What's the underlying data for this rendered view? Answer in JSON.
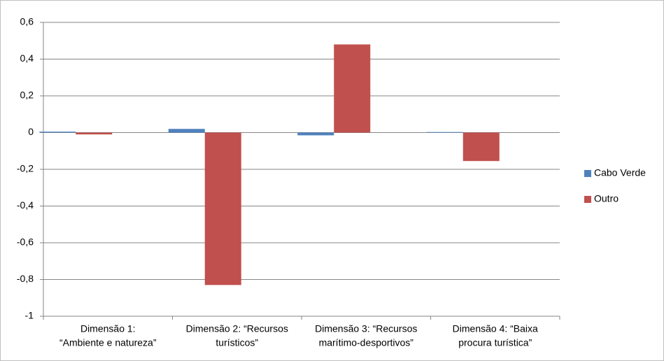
{
  "chart_data": {
    "type": "bar",
    "categories": [
      [
        "Dimensão 1:",
        "“Ambiente e natureza”"
      ],
      [
        "Dimensão 2: “Recursos",
        "turísticos”"
      ],
      [
        "Dimensão 3: “Recursos",
        "marítimo-desportivos”"
      ],
      [
        "Dimensão 4: “Baixa",
        "procura turística”"
      ]
    ],
    "series": [
      {
        "name": "Cabo Verde",
        "color": "#4f81bd",
        "values": [
          0.005,
          0.02,
          -0.015,
          0.003
        ]
      },
      {
        "name": "Outro",
        "color": "#c0504d",
        "values": [
          -0.01,
          -0.83,
          0.48,
          -0.155
        ]
      }
    ],
    "ylim": [
      -1,
      0.6
    ],
    "yticks": [
      {
        "value": 0.6,
        "label": "0,6"
      },
      {
        "value": 0.4,
        "label": "0,4"
      },
      {
        "value": 0.2,
        "label": "0,2"
      },
      0,
      {
        "value": -0.2,
        "label": "-0,2"
      },
      {
        "value": -0.4,
        "label": "-0,4"
      },
      {
        "value": -0.6,
        "label": "-0,6"
      },
      {
        "value": -0.8,
        "label": "-0,8"
      },
      -1
    ],
    "grid": true,
    "legend": "right"
  }
}
